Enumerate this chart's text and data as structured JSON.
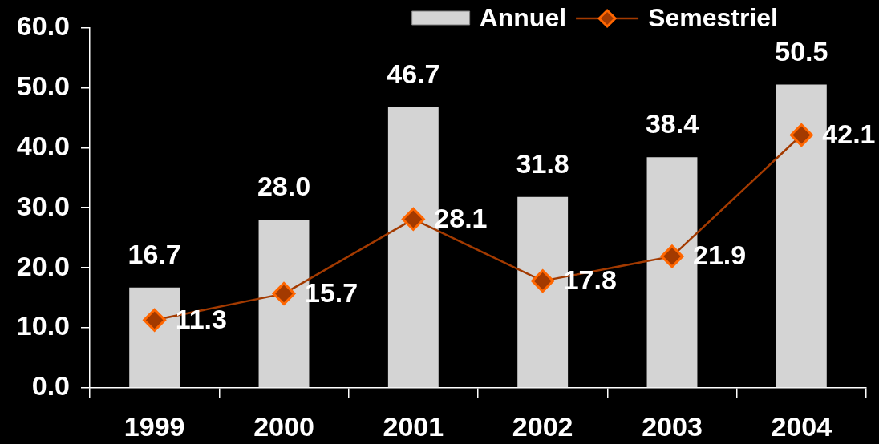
{
  "chart_data": {
    "type": "bar",
    "categories": [
      "1999",
      "2000",
      "2001",
      "2002",
      "2003",
      "2004"
    ],
    "series": [
      {
        "name": "Annuel",
        "color": "#d4d4d4",
        "values": [
          16.7,
          28.0,
          46.7,
          31.8,
          38.4,
          50.5
        ],
        "value_labels": [
          "16.7",
          "28.0",
          "46.7",
          "31.8",
          "38.4",
          "50.5"
        ]
      },
      {
        "name": "Semestriel",
        "type": "line",
        "color": "#a33a00",
        "values": [
          11.3,
          15.7,
          28.1,
          17.8,
          21.9,
          42.1
        ],
        "value_labels": [
          "11.3",
          "15.7",
          "28.1",
          "17.8",
          "21.9",
          "42.1"
        ]
      }
    ],
    "ylim": [
      0,
      60
    ],
    "yticks": [
      {
        "value": 0,
        "label": "0.0"
      },
      {
        "value": 10,
        "label": "10.0"
      },
      {
        "value": 20,
        "label": "20.0"
      },
      {
        "value": 30,
        "label": "30.0"
      },
      {
        "value": 40,
        "label": "40.0"
      },
      {
        "value": 50,
        "label": "50.0"
      },
      {
        "value": 60,
        "label": "60.0"
      }
    ],
    "legend": "top right",
    "marker": "diamond",
    "line_style": "solid"
  }
}
